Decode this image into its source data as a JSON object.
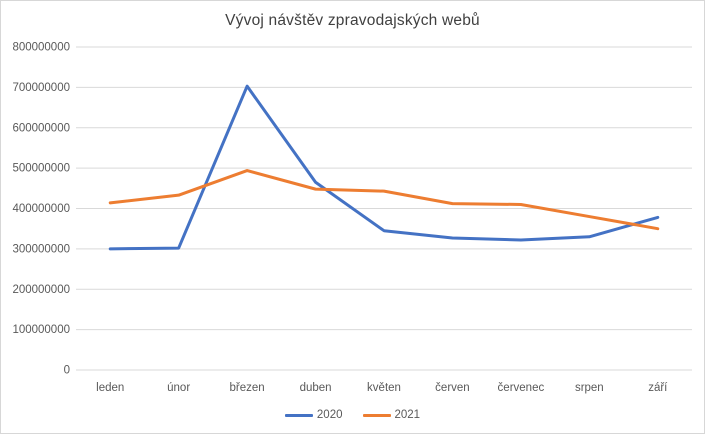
{
  "chart_title": "Vývoj návštěv zpravodajských webů",
  "colors": {
    "series_2020": "#4472C4",
    "series_2021": "#ED7D31",
    "gridline": "#D9D9D9",
    "axis_line": "#D9D9D9",
    "axis_text": "#595959",
    "title_text": "#404040",
    "frame_border": "#D7D7D7",
    "background": "#FFFFFF"
  },
  "chart_data": {
    "type": "line",
    "title": "Vývoj návštěv zpravodajských webů",
    "categories": [
      "leden",
      "únor",
      "březen",
      "duben",
      "květen",
      "červen",
      "červenec",
      "srpen",
      "září"
    ],
    "series": [
      {
        "name": "2020",
        "color": "#4472C4",
        "values": [
          300000000,
          302000000,
          703000000,
          465000000,
          345000000,
          327000000,
          322000000,
          330000000,
          378000000
        ]
      },
      {
        "name": "2021",
        "color": "#ED7D31",
        "values": [
          414000000,
          433000000,
          494000000,
          448000000,
          443000000,
          412000000,
          410000000,
          380000000,
          350000000
        ]
      }
    ],
    "xlabel": "",
    "ylabel": "",
    "ylim": [
      0,
      800000000
    ],
    "ytick_step": 100000000,
    "ytick_labels": [
      "0",
      "100000000",
      "200000000",
      "300000000",
      "400000000",
      "500000000",
      "600000000",
      "700000000",
      "800000000"
    ],
    "grid": true,
    "legend_position": "bottom"
  }
}
